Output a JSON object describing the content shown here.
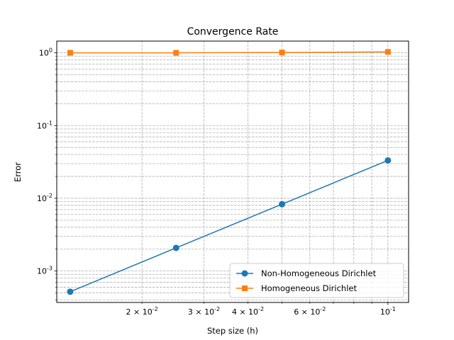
{
  "chart_data": {
    "type": "line",
    "title": "Convergence Rate",
    "xlabel": "Step size (h)",
    "ylabel": "Error",
    "xscale": "log",
    "yscale": "log",
    "xlim": [
      0.01145,
      0.1145
    ],
    "ylim": [
      0.00037,
      1.45
    ],
    "grid": "both (major and minor), dashed",
    "legend_position": "lower-right",
    "x": [
      0.0125,
      0.025,
      0.05,
      0.1
    ],
    "x_tick_labels": [
      "2 × 10^-2",
      "3 × 10^-2",
      "4 × 10^-2",
      "6 × 10^-2",
      "10^-1"
    ],
    "y_tick_labels": [
      "10^-3",
      "10^-2",
      "10^-1",
      "10^0"
    ],
    "series": [
      {
        "name": "Non-Homogeneous Dirichlet",
        "color": "#1f77b4",
        "marker": "circle",
        "values": [
          0.00052,
          0.00208,
          0.0083,
          0.0332
        ]
      },
      {
        "name": "Homogeneous Dirichlet",
        "color": "#ff7f0e",
        "marker": "square",
        "values": [
          1.0,
          1.0,
          1.01,
          1.03
        ]
      }
    ]
  }
}
